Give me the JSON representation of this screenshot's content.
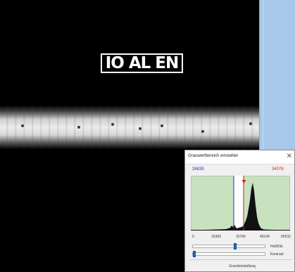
{
  "image_viewer": {
    "iqi_label": "IO AL EN"
  },
  "grey_dialog": {
    "title": "Grauwertbereich einstellen",
    "lower_value": "26835",
    "upper_value": "34078",
    "histogram_axis_labels": [
      "0",
      "16383",
      "32766",
      "49149",
      "65532"
    ],
    "brightness_label": "Hell/Dkl.",
    "brightness_level_percent": 60,
    "contrast_label": "Kontrast",
    "contrast_level_percent": 1,
    "reset_button_label": "Grundeinstellung",
    "colors": {
      "lower_marker": "#2233aa",
      "upper_marker": "#cc2222",
      "range_fill": "#c8e2c0",
      "slider_thumb": "#1a6fd0"
    }
  },
  "side_panel": {
    "color": "#a8c8ea"
  }
}
